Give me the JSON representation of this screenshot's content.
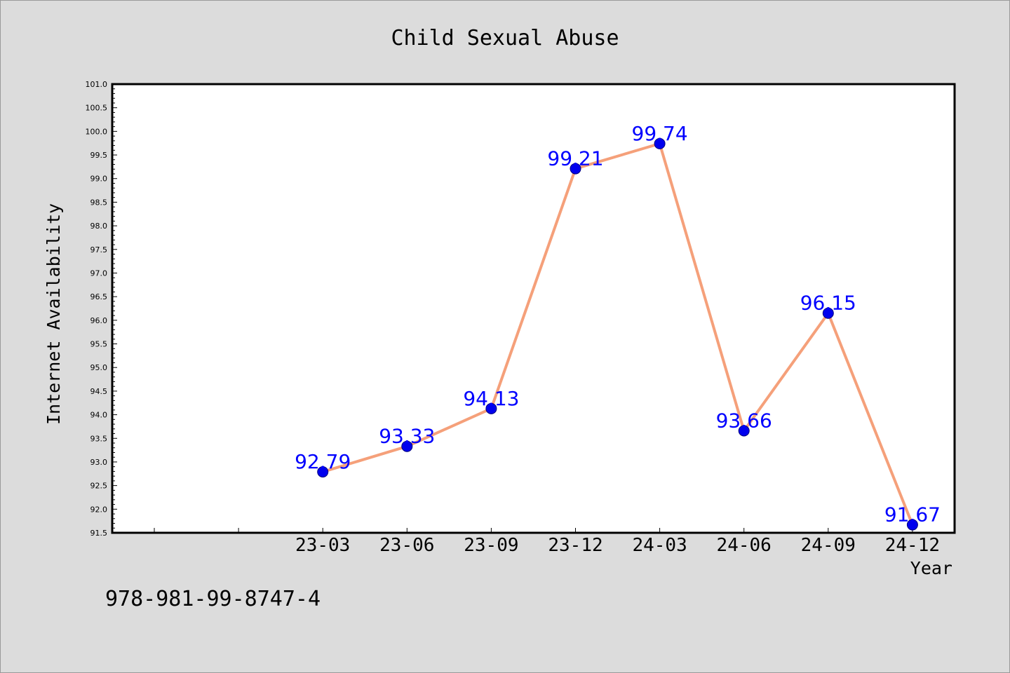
{
  "chart_data": {
    "type": "line",
    "title": "Child Sexual Abuse",
    "xlabel": "Year",
    "ylabel": "Internet Availability",
    "categories": [
      "23-03",
      "23-06",
      "23-09",
      "23-12",
      "24-03",
      "24-06",
      "24-09",
      "24-12"
    ],
    "series": [
      {
        "values": [
          92.79,
          93.33,
          94.13,
          99.21,
          99.74,
          93.66,
          96.15,
          91.67
        ]
      }
    ],
    "data_labels": [
      "92.79",
      "93.33",
      "94.13",
      "99.21",
      "99.74",
      "93.66",
      "96.15",
      "91.67"
    ],
    "ylim": [
      91.5,
      101.0
    ],
    "yticks": [
      "91.5",
      "92.0",
      "92.5",
      "93.0",
      "93.5",
      "94.0",
      "94.5",
      "95.0",
      "95.5",
      "96.0",
      "96.5",
      "97.0",
      "97.5",
      "98.0",
      "98.5",
      "99.0",
      "99.5",
      "100.0",
      "100.5",
      "101.0"
    ],
    "grid": false,
    "colors": {
      "line": "#f5a07a",
      "marker": "#0000ee",
      "marker_edge": "#000080",
      "data_label": "#0000ff",
      "plot_background": "#ffffff",
      "page_background": "#dcdcdc"
    }
  },
  "footer": {
    "code": "978-981-99-8747-4"
  }
}
